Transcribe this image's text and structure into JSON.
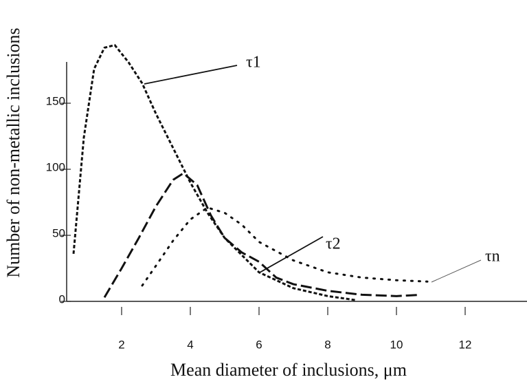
{
  "chart_data": {
    "type": "line",
    "x_label": "Mean diameter of inclusions, μm",
    "y_label": "Number of non-metallic inclusions",
    "xlim": [
      0.4,
      13.8
    ],
    "ylim": [
      0,
      200
    ],
    "xticks": [
      2,
      4,
      6,
      8,
      10,
      12
    ],
    "yticks": [
      0,
      50,
      100,
      150
    ],
    "series": [
      {
        "name": "τ1",
        "color": "#111111",
        "dash": "short",
        "x": [
          0.6,
          0.9,
          1.2,
          1.5,
          1.8,
          2.2,
          2.6,
          3.0,
          3.5,
          4.0,
          4.5,
          5.0,
          5.5,
          6.0,
          7.0,
          8.0,
          8.8
        ],
        "values": [
          36,
          124,
          176,
          192,
          194,
          181,
          165,
          142,
          116,
          90,
          67,
          48,
          35,
          22,
          10,
          4,
          1
        ]
      },
      {
        "name": "τ2",
        "color": "#111111",
        "dash": "long",
        "x": [
          1.5,
          2.0,
          2.5,
          3.0,
          3.5,
          3.8,
          4.2,
          4.6,
          5.0,
          5.5,
          6.0,
          6.5,
          7.0,
          8.0,
          9.0,
          10.0,
          10.7
        ],
        "values": [
          3,
          25,
          48,
          72,
          92,
          97,
          88,
          65,
          48,
          37,
          30,
          18,
          13,
          8,
          5,
          4,
          5
        ]
      },
      {
        "name": "τn",
        "color": "#111111",
        "dash": "dotted",
        "x": [
          2.6,
          3.0,
          3.5,
          4.0,
          4.5,
          5.0,
          5.5,
          6.0,
          7.0,
          8.0,
          9.0,
          10.0,
          10.9
        ],
        "values": [
          12,
          27,
          46,
          62,
          71,
          67,
          58,
          45,
          31,
          22,
          18,
          16,
          15
        ]
      }
    ]
  }
}
